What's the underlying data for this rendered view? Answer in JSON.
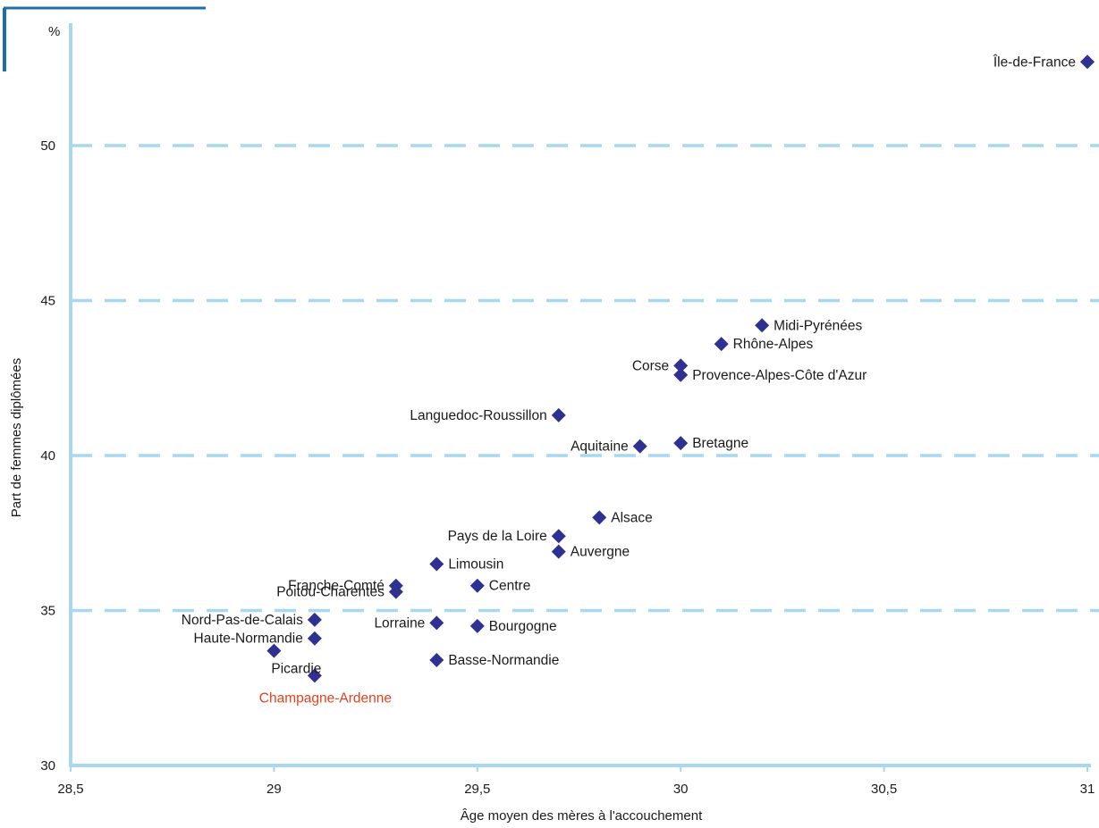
{
  "chart_data": {
    "type": "scatter",
    "title": "",
    "xlabel": "Âge moyen des mères à l'accouchement",
    "ylabel": "Part de femmes  diplômées",
    "y_unit": "%",
    "xlim": [
      28.5,
      31
    ],
    "ylim": [
      30,
      53.5
    ],
    "x_ticks": [
      28.5,
      29,
      29.5,
      30,
      30.5,
      31
    ],
    "x_tick_labels": [
      "28,5",
      "29",
      "29,5",
      "30",
      "30,5",
      "31"
    ],
    "y_ticks": [
      30,
      35,
      40,
      45,
      50
    ],
    "y_tick_labels": [
      "30",
      "35",
      "40",
      "45",
      "50"
    ],
    "grid": "horizontal dashed",
    "colors": {
      "axis": "#a8d8f0",
      "grid": "#a8d8f0",
      "marker": "#2e3192",
      "highlight_label": "#e2431f",
      "frame_accent": "#1a6fb3"
    },
    "points": [
      {
        "label": "Île-de-France",
        "x": 31.0,
        "y": 52.7,
        "label_side": "left"
      },
      {
        "label": "Midi-Pyrénées",
        "x": 30.2,
        "y": 44.2,
        "label_side": "right"
      },
      {
        "label": "Rhône-Alpes",
        "x": 30.1,
        "y": 43.6,
        "label_side": "right"
      },
      {
        "label": "Corse",
        "x": 30.0,
        "y": 42.9,
        "label_side": "left"
      },
      {
        "label": "Provence-Alpes-Côte d'Azur",
        "x": 30.0,
        "y": 42.6,
        "label_side": "right"
      },
      {
        "label": "Languedoc-Roussillon",
        "x": 29.7,
        "y": 41.3,
        "label_side": "left"
      },
      {
        "label": "Aquitaine",
        "x": 29.9,
        "y": 40.3,
        "label_side": "left"
      },
      {
        "label": "Bretagne",
        "x": 30.0,
        "y": 40.4,
        "label_side": "right"
      },
      {
        "label": "Alsace",
        "x": 29.8,
        "y": 38.0,
        "label_side": "right"
      },
      {
        "label": "Pays de la Loire",
        "x": 29.7,
        "y": 37.4,
        "label_side": "left"
      },
      {
        "label": "Auvergne",
        "x": 29.7,
        "y": 36.9,
        "label_side": "right"
      },
      {
        "label": "Limousin",
        "x": 29.4,
        "y": 36.5,
        "label_side": "right"
      },
      {
        "label": "Franche-Comté",
        "x": 29.3,
        "y": 35.8,
        "label_side": "left"
      },
      {
        "label": "Poitou-Charentes",
        "x": 29.3,
        "y": 35.6,
        "label_side": "left"
      },
      {
        "label": "Centre",
        "x": 29.5,
        "y": 35.8,
        "label_side": "right"
      },
      {
        "label": "Nord-Pas-de-Calais",
        "x": 29.1,
        "y": 34.7,
        "label_side": "left"
      },
      {
        "label": "Haute-Normandie",
        "x": 29.1,
        "y": 34.1,
        "label_side": "left"
      },
      {
        "label": "Lorraine",
        "x": 29.4,
        "y": 34.6,
        "label_side": "left"
      },
      {
        "label": "Bourgogne",
        "x": 29.5,
        "y": 34.5,
        "label_side": "right"
      },
      {
        "label": "Picardie",
        "x": 29.0,
        "y": 33.7,
        "label_side": "below"
      },
      {
        "label": "Basse-Normandie",
        "x": 29.4,
        "y": 33.4,
        "label_side": "right"
      },
      {
        "label": "Champagne-Ardenne",
        "x": 29.1,
        "y": 32.9,
        "label_side": "below",
        "highlight": true
      }
    ]
  }
}
